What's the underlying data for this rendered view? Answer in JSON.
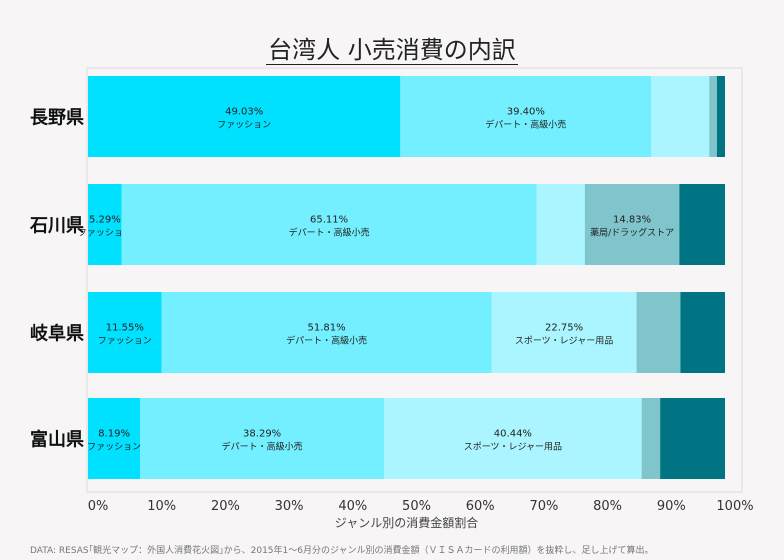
{
  "chart_data": {
    "type": "bar",
    "orientation": "horizontal",
    "stacked": true,
    "title": "台湾人 小売消費の内訳",
    "xlabel": "ジャンル別の消費金額割合",
    "xlim": [
      0,
      100
    ],
    "xticks": [
      "0%",
      "10%",
      "20%",
      "30%",
      "40%",
      "50%",
      "60%",
      "70%",
      "80%",
      "90%",
      "100%"
    ],
    "categories": [
      "長野県",
      "石川県",
      "岐阜県",
      "富山県"
    ],
    "colors": [
      "#00e0ff",
      "#73efff",
      "#aaf5ff",
      "#80c4cc",
      "#007482"
    ],
    "rows": [
      {
        "category": "長野県",
        "segments": [
          {
            "value": 49.03,
            "label": "49.03%",
            "genre": "ファッション"
          },
          {
            "value": 39.4,
            "label": "39.40%",
            "genre": "デパート・高級小売"
          },
          {
            "value": 9.1
          },
          {
            "value": 1.2
          },
          {
            "value": 1.27
          }
        ]
      },
      {
        "category": "石川県",
        "segments": [
          {
            "value": 5.29,
            "label": "5.29%",
            "genre": "ファッション"
          },
          {
            "value": 65.11,
            "label": "65.11%",
            "genre": "デパート・高級小売"
          },
          {
            "value": 7.6
          },
          {
            "value": 14.83,
            "label": "14.83%",
            "genre": "薬局/ドラッグストア"
          },
          {
            "value": 7.17
          }
        ]
      },
      {
        "category": "岐阜県",
        "segments": [
          {
            "value": 11.55,
            "label": "11.55%",
            "genre": "ファッション"
          },
          {
            "value": 51.81,
            "label": "51.81%",
            "genre": "デパート・高級小売"
          },
          {
            "value": 22.75,
            "label": "22.75%",
            "genre": "スポーツ・レジャー用品"
          },
          {
            "value": 6.9
          },
          {
            "value": 6.99
          }
        ]
      },
      {
        "category": "富山県",
        "segments": [
          {
            "value": 8.19,
            "label": "8.19%",
            "genre": "ファッション"
          },
          {
            "value": 38.29,
            "label": "38.29%",
            "genre": "デパート・高級小売"
          },
          {
            "value": 40.44,
            "label": "40.44%",
            "genre": "スポーツ・レジャー用品"
          },
          {
            "value": 2.9
          },
          {
            "value": 10.18
          }
        ]
      }
    ]
  },
  "footer": "DATA: RESAS｢観光マップ：外国人消費花火図｣から、2015年1～6月分のジャンル別の消費金額（ＶＩＳＡカードの利用額）を抜粋し、足し上げて算出。"
}
